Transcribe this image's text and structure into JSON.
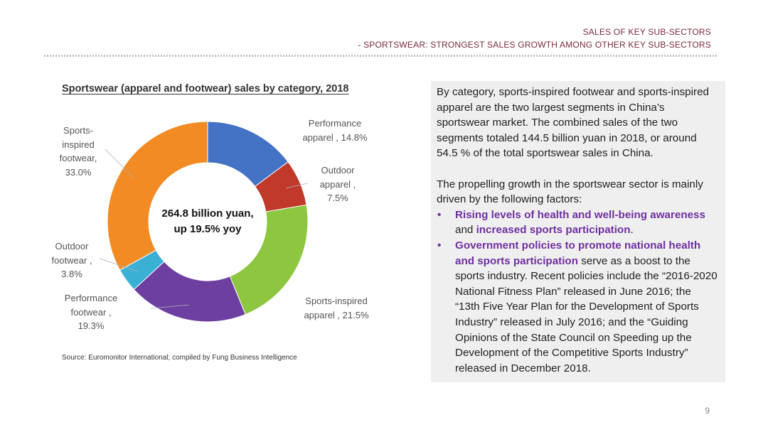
{
  "header": {
    "line1": "SALES OF KEY SUB-SECTORS",
    "line2": "- SPORTSWEAR: STRONGEST SALES GROWTH AMONG OTHER KEY SUB-SECTORS"
  },
  "chart_data": {
    "type": "pie",
    "title": "Sportswear (apparel and footwear) sales by category, 2018",
    "center_label": [
      "264.8 billion yuan,",
      "up 19.5% yoy"
    ],
    "slices": [
      {
        "name": "Performance apparel",
        "value": 14.8,
        "color": "#4472c4",
        "label": [
          "Performance",
          "apparel , 14.8%"
        ]
      },
      {
        "name": "Outdoor apparel",
        "value": 7.5,
        "color": "#c0392b",
        "label": [
          "Outdoor",
          "apparel ,",
          "7.5%"
        ]
      },
      {
        "name": "Sports-inspired apparel",
        "value": 21.5,
        "color": "#8dc63f",
        "label": [
          "Sports-inspired",
          "apparel , 21.5%"
        ]
      },
      {
        "name": "Performance footwear",
        "value": 19.3,
        "color": "#6d3fa0",
        "label": [
          "Performance",
          "footwear ,",
          "19.3%"
        ]
      },
      {
        "name": "Outdoor footwear",
        "value": 3.8,
        "color": "#3ab0d4",
        "label": [
          "Outdoor",
          "footwear ,",
          "3.8%"
        ]
      },
      {
        "name": "Sports-inspired footwear",
        "value": 33.0,
        "color": "#f28b24",
        "label": [
          "Sports-",
          "inspired",
          "footwear,",
          "33.0%"
        ]
      }
    ],
    "unit": "%",
    "source": "Source: Euromonitor International; compiled by Fung Business Intelligence"
  },
  "text": {
    "para1": "By category, sports-inspired footwear and sports-inspired apparel are the two largest segments in China’s sportswear market. The combined sales of the two segments totaled 144.5 billion yuan in 2018, or around 54.5 % of the total sportswear sales in China.",
    "para2": "The propelling growth in the sportswear sector is mainly driven by the following factors:",
    "bullet_char": "•",
    "bullet1": {
      "hl1": "Rising levels of health and well-being awareness",
      "mid": " and ",
      "hl2": "increased sports participation",
      "end": "."
    },
    "bullet2": {
      "hl": "Government policies to promote national health and sports participation",
      "rest": " serve as a boost to the sports industry. Recent policies include the “2016-2020 National Fitness Plan” released in June 2016; the “13th Five Year Plan for the Development of Sports Industry” released in July 2016; and the “Guiding Opinions of the State Council on Speeding up the Development of the Competitive Sports Industry” released in December 2018."
    }
  },
  "page_number": "9"
}
